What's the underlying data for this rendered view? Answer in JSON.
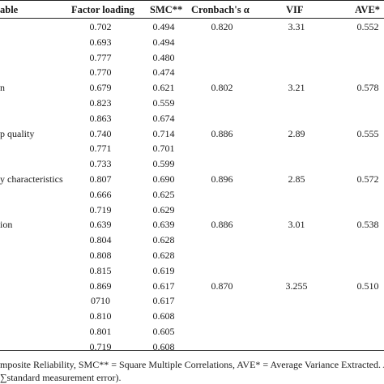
{
  "table": {
    "headers": {
      "variable": "able",
      "factor_loading": "Factor loading",
      "smc": "SMC**",
      "cronbach": "Cronbach's α",
      "vif": "VIF",
      "ave": "AVE*"
    },
    "rows": [
      {
        "variable": "",
        "factor_loading": "0.702",
        "smc": "0.494",
        "cronbach": "0.820",
        "vif": "3.31",
        "ave": "0.552"
      },
      {
        "variable": "",
        "factor_loading": "0.693",
        "smc": "0.494",
        "cronbach": "",
        "vif": "",
        "ave": ""
      },
      {
        "variable": "",
        "factor_loading": "0.777",
        "smc": "0.480",
        "cronbach": "",
        "vif": "",
        "ave": ""
      },
      {
        "variable": "",
        "factor_loading": "0.770",
        "smc": "0.474",
        "cronbach": "",
        "vif": "",
        "ave": ""
      },
      {
        "variable": "n",
        "factor_loading": "0.679",
        "smc": "0.621",
        "cronbach": "0.802",
        "vif": "3.21",
        "ave": "0.578"
      },
      {
        "variable": "",
        "factor_loading": "0.823",
        "smc": "0.559",
        "cronbach": "",
        "vif": "",
        "ave": ""
      },
      {
        "variable": "",
        "factor_loading": "0.863",
        "smc": "0.674",
        "cronbach": "",
        "vif": "",
        "ave": ""
      },
      {
        "variable": "p quality",
        "factor_loading": "0.740",
        "smc": "0.714",
        "cronbach": "0.886",
        "vif": "2.89",
        "ave": "0.555"
      },
      {
        "variable": "",
        "factor_loading": "0.771",
        "smc": "0.701",
        "cronbach": "",
        "vif": "",
        "ave": ""
      },
      {
        "variable": "",
        "factor_loading": "0.733",
        "smc": "0.599",
        "cronbach": "",
        "vif": "",
        "ave": ""
      },
      {
        "variable": "y characteristics",
        "factor_loading": "0.807",
        "smc": "0.690",
        "cronbach": "0.896",
        "vif": "2.85",
        "ave": "0.572"
      },
      {
        "variable": "",
        "factor_loading": "0.666",
        "smc": "0.625",
        "cronbach": "",
        "vif": "",
        "ave": ""
      },
      {
        "variable": "",
        "factor_loading": "0.719",
        "smc": "0.629",
        "cronbach": "",
        "vif": "",
        "ave": ""
      },
      {
        "variable": "ion",
        "factor_loading": "0.639",
        "smc": "0.639",
        "cronbach": "0.886",
        "vif": "3.01",
        "ave": "0.538"
      },
      {
        "variable": "",
        "factor_loading": "0.804",
        "smc": "0.628",
        "cronbach": "",
        "vif": "",
        "ave": ""
      },
      {
        "variable": "",
        "factor_loading": "0.808",
        "smc": "0.628",
        "cronbach": "",
        "vif": "",
        "ave": ""
      },
      {
        "variable": "",
        "factor_loading": "0.815",
        "smc": "0.619",
        "cronbach": "",
        "vif": "",
        "ave": ""
      },
      {
        "variable": "",
        "factor_loading": "0.869",
        "smc": "0.617",
        "cronbach": "0.870",
        "vif": "3.255",
        "ave": "0.510"
      },
      {
        "variable": "",
        "factor_loading": "0710",
        "smc": "0.617",
        "cronbach": "",
        "vif": "",
        "ave": ""
      },
      {
        "variable": "",
        "factor_loading": "0.810",
        "smc": "0.608",
        "cronbach": "",
        "vif": "",
        "ave": ""
      },
      {
        "variable": "",
        "factor_loading": "0.801",
        "smc": "0.605",
        "cronbach": "",
        "vif": "",
        "ave": ""
      },
      {
        "variable": "",
        "factor_loading": "0.719",
        "smc": "0.608",
        "cronbach": "",
        "vif": "",
        "ave": ""
      }
    ]
  },
  "footnote": {
    "line1": "mposite Reliability, SMC** = Square Multiple Correlations, AVE* = Average Variance Extracted. AVE",
    "line2": "∑standard measurement error)."
  }
}
